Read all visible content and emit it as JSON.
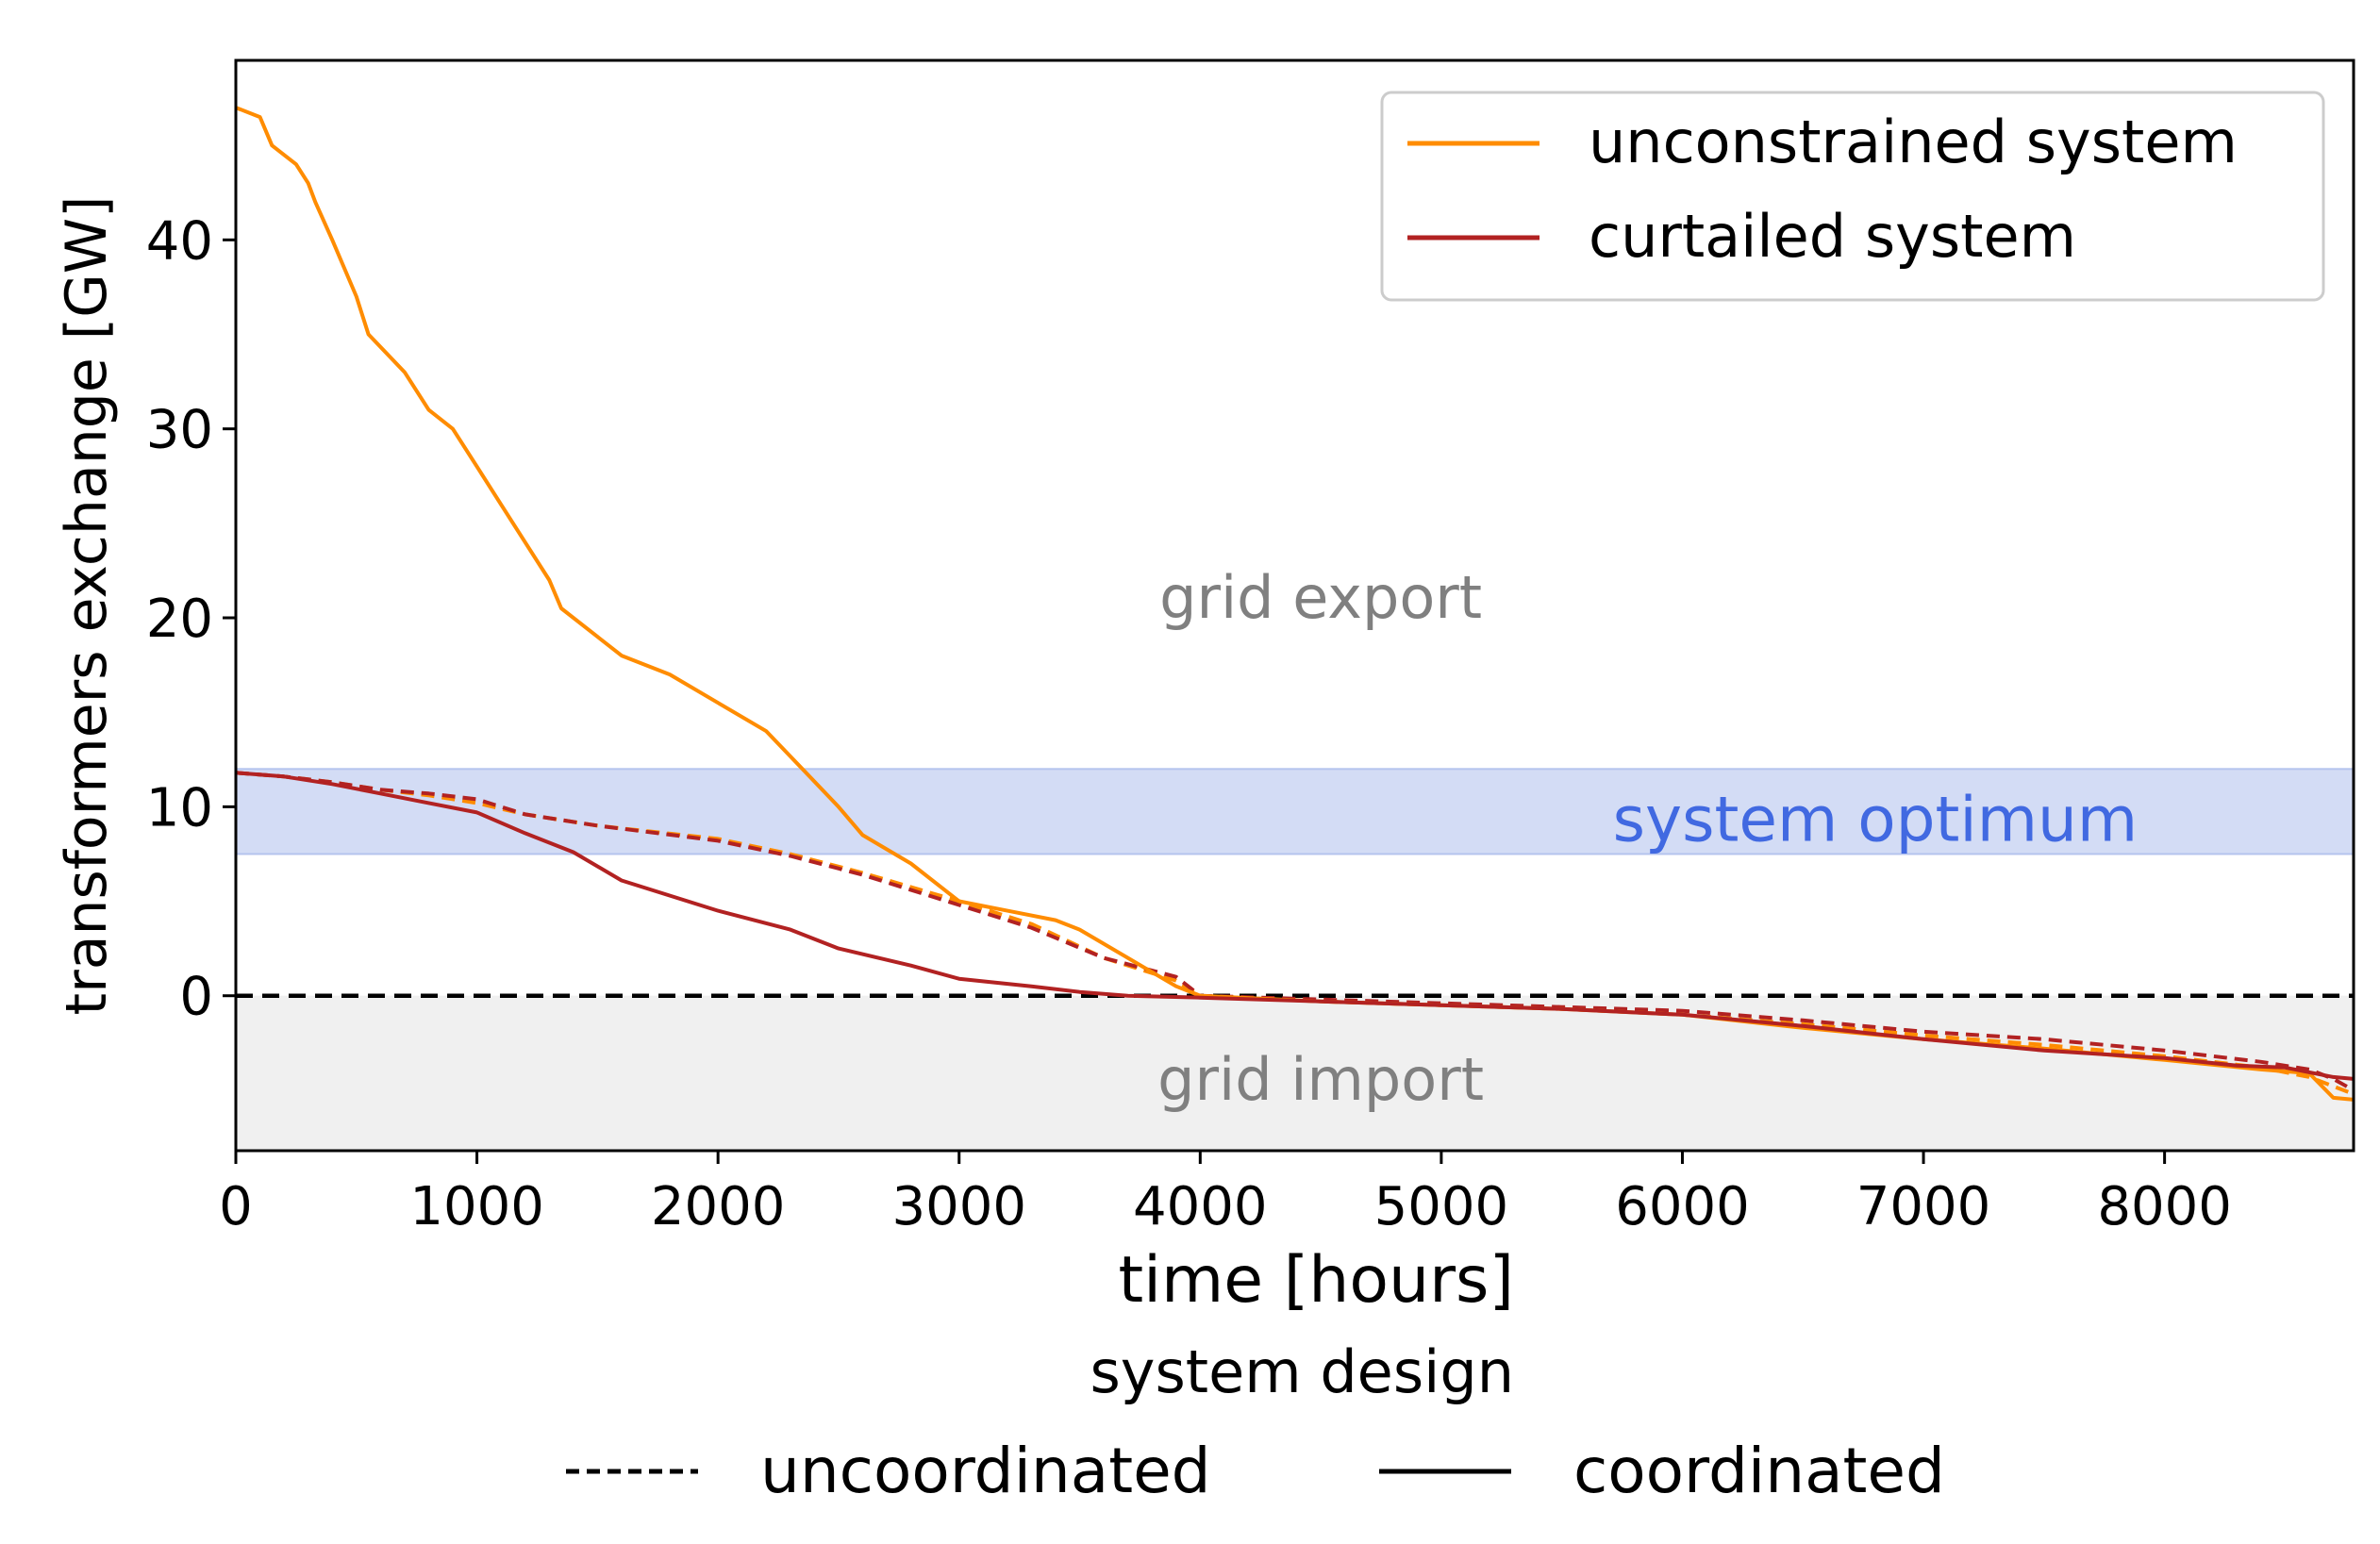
{
  "chart_data": {
    "type": "line",
    "xlabel": "time [hours]",
    "ylabel": "transformers exchange [GW]",
    "xlim": [
      0,
      8784
    ],
    "ylim": [
      -8.2,
      49.5
    ],
    "xticks": [
      0,
      1000,
      2000,
      3000,
      4000,
      5000,
      6000,
      7000,
      8000
    ],
    "yticks": [
      0,
      10,
      20,
      30,
      40
    ],
    "grid": false,
    "legend_placement": "top-right",
    "regions": {
      "export_label": "grid export",
      "import_label": "grid import",
      "optimum_label": "system optimum",
      "optimum_band": [
        7.5,
        12.0
      ],
      "import_band": [
        -8.2,
        0
      ],
      "zero_line": 0
    },
    "colors": {
      "unconstrained": "#ff8c00",
      "curtailed": "#b22222",
      "optimum_fill": "#d3dcf5",
      "optimum_text": "#4169e1",
      "region_text": "#808080",
      "import_fill": "#f0f0f0"
    },
    "legend_series": [
      {
        "name": "unconstrained system",
        "color": "#ff8c00"
      },
      {
        "name": "curtailed system",
        "color": "#b22222"
      }
    ],
    "legend_style": {
      "title": "system design",
      "entries": [
        {
          "name": "uncoordinated",
          "dash": "dashed"
        },
        {
          "name": "coordinated",
          "dash": "solid"
        }
      ]
    },
    "series": [
      {
        "name": "unconstrained system",
        "style": "solid",
        "color": "#ff8c00",
        "x": [
          0,
          100,
          150,
          250,
          300,
          330,
          400,
          500,
          550,
          700,
          800,
          900,
          1000,
          1100,
          1200,
          1300,
          1350,
          1500,
          1600,
          1800,
          2000,
          2200,
          2350,
          2500,
          2600,
          2800,
          3000,
          3200,
          3400,
          3500,
          3700,
          3900,
          4000,
          4500,
          5000,
          5500,
          6000,
          6500,
          7000,
          7500,
          8000,
          8400,
          8600,
          8700,
          8784
        ],
        "y": [
          47,
          46.5,
          45,
          44,
          43,
          42,
          40,
          37,
          35,
          33,
          31,
          30,
          28,
          26,
          24,
          22,
          20.5,
          19,
          18,
          17,
          15.5,
          14,
          12,
          10,
          8.5,
          7,
          5,
          4.5,
          4,
          3.5,
          2,
          0.5,
          0,
          -0.3,
          -0.5,
          -0.7,
          -1,
          -1.7,
          -2.3,
          -2.8,
          -3.4,
          -3.9,
          -4.1,
          -5.4,
          -5.5
        ]
      },
      {
        "name": "unconstrained system",
        "style": "dashed",
        "color": "#ff8c00",
        "x": [
          0,
          200,
          400,
          600,
          800,
          1000,
          1200,
          1500,
          2000,
          2300,
          2600,
          3000,
          3300,
          3600,
          3900,
          4000,
          4500,
          5000,
          5500,
          6000,
          6500,
          7000,
          7500,
          8000,
          8400,
          8600,
          8784
        ],
        "y": [
          11.8,
          11.6,
          11.3,
          10.9,
          10.6,
          10.2,
          9.6,
          9.0,
          8.3,
          7.5,
          6.5,
          5.0,
          3.8,
          2.0,
          0.8,
          0,
          -0.3,
          -0.5,
          -0.7,
          -1.0,
          -1.5,
          -2.1,
          -2.6,
          -3.2,
          -3.8,
          -4.3,
          -5.2
        ]
      },
      {
        "name": "curtailed system",
        "style": "solid",
        "color": "#b22222",
        "x": [
          0,
          200,
          400,
          600,
          800,
          1000,
          1200,
          1400,
          1600,
          2000,
          2300,
          2500,
          2800,
          3000,
          3300,
          3500,
          3700,
          4000,
          4500,
          5000,
          5500,
          6000,
          6500,
          7000,
          7500,
          8000,
          8300,
          8500,
          8700,
          8784
        ],
        "y": [
          11.8,
          11.6,
          11.2,
          10.7,
          10.2,
          9.7,
          8.6,
          7.6,
          6.1,
          4.5,
          3.5,
          2.5,
          1.6,
          0.9,
          0.5,
          0.2,
          0,
          -0.1,
          -0.3,
          -0.5,
          -0.7,
          -1.0,
          -1.6,
          -2.3,
          -2.9,
          -3.3,
          -3.7,
          -3.8,
          -4.3,
          -4.4
        ]
      },
      {
        "name": "curtailed system",
        "style": "dashed",
        "color": "#b22222",
        "x": [
          0,
          200,
          400,
          600,
          800,
          1000,
          1200,
          1500,
          2000,
          2300,
          2600,
          3000,
          3300,
          3600,
          3900,
          4000,
          4500,
          5000,
          5500,
          6000,
          6500,
          7000,
          7500,
          8000,
          8400,
          8600,
          8700,
          8784
        ],
        "y": [
          11.8,
          11.6,
          11.3,
          10.9,
          10.7,
          10.4,
          9.6,
          9.0,
          8.2,
          7.4,
          6.4,
          4.8,
          3.6,
          2.0,
          1.0,
          0,
          -0.2,
          -0.4,
          -0.6,
          -0.8,
          -1.3,
          -1.9,
          -2.3,
          -2.9,
          -3.5,
          -3.9,
          -4.4,
          -5.0
        ]
      }
    ]
  }
}
